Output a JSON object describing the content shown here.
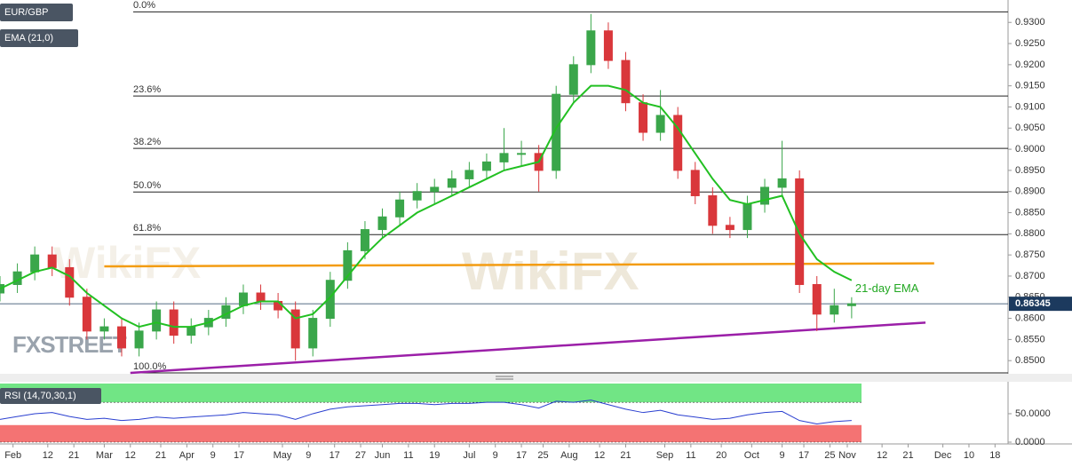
{
  "chart_data": [
    {
      "type": "candlestick",
      "title": "EUR/GBP",
      "x": [
        0,
        4,
        8,
        12,
        16,
        20,
        24,
        28,
        32,
        36,
        40,
        44,
        48,
        52,
        56,
        60,
        64,
        68,
        72,
        76,
        80,
        84,
        88,
        92,
        96,
        100,
        104,
        108,
        112,
        116,
        120,
        124,
        128,
        132,
        136,
        140,
        144,
        148,
        152,
        156,
        160,
        164,
        168,
        172,
        176,
        180,
        184,
        188,
        192,
        196
      ],
      "open": [
        0.866,
        0.868,
        0.871,
        0.875,
        0.872,
        0.865,
        0.857,
        0.858,
        0.853,
        0.857,
        0.862,
        0.856,
        0.858,
        0.86,
        0.863,
        0.866,
        0.864,
        0.862,
        0.853,
        0.86,
        0.869,
        0.876,
        0.881,
        0.884,
        0.888,
        0.89,
        0.891,
        0.893,
        0.895,
        0.897,
        0.899,
        0.899,
        0.895,
        0.913,
        0.92,
        0.928,
        0.921,
        0.911,
        0.904,
        0.908,
        0.895,
        0.889,
        0.882,
        0.881,
        0.887,
        0.891,
        0.893,
        0.868,
        0.861,
        0.863
      ],
      "high": [
        0.87,
        0.873,
        0.877,
        0.877,
        0.874,
        0.867,
        0.86,
        0.86,
        0.859,
        0.864,
        0.864,
        0.86,
        0.862,
        0.865,
        0.868,
        0.868,
        0.866,
        0.864,
        0.862,
        0.871,
        0.878,
        0.883,
        0.886,
        0.89,
        0.892,
        0.893,
        0.895,
        0.897,
        0.899,
        0.905,
        0.902,
        0.901,
        0.915,
        0.922,
        0.932,
        0.93,
        0.923,
        0.913,
        0.914,
        0.91,
        0.897,
        0.891,
        0.884,
        0.889,
        0.893,
        0.902,
        0.895,
        0.87,
        0.867,
        0.865
      ],
      "low": [
        0.864,
        0.866,
        0.869,
        0.87,
        0.863,
        0.855,
        0.855,
        0.851,
        0.851,
        0.855,
        0.854,
        0.854,
        0.856,
        0.858,
        0.861,
        0.862,
        0.86,
        0.85,
        0.851,
        0.858,
        0.867,
        0.874,
        0.879,
        0.882,
        0.886,
        0.887,
        0.889,
        0.891,
        0.893,
        0.895,
        0.896,
        0.89,
        0.893,
        0.911,
        0.918,
        0.919,
        0.909,
        0.902,
        0.902,
        0.893,
        0.887,
        0.88,
        0.879,
        0.879,
        0.885,
        0.889,
        0.866,
        0.857,
        0.859,
        0.86
      ],
      "close": [
        0.868,
        0.871,
        0.875,
        0.872,
        0.865,
        0.857,
        0.858,
        0.853,
        0.857,
        0.862,
        0.856,
        0.858,
        0.86,
        0.863,
        0.866,
        0.864,
        0.862,
        0.853,
        0.86,
        0.869,
        0.876,
        0.881,
        0.884,
        0.888,
        0.89,
        0.891,
        0.893,
        0.895,
        0.897,
        0.899,
        0.899,
        0.895,
        0.913,
        0.92,
        0.928,
        0.921,
        0.911,
        0.904,
        0.908,
        0.895,
        0.889,
        0.882,
        0.881,
        0.887,
        0.891,
        0.893,
        0.868,
        0.861,
        0.863,
        0.86345
      ],
      "up_color": "#3aa64a",
      "down_color": "#d9373b",
      "overlays": [
        {
          "name": "EMA (21,0)",
          "color": "#22c022",
          "values": [
            0.867,
            0.869,
            0.871,
            0.872,
            0.87,
            0.866,
            0.863,
            0.86,
            0.858,
            0.859,
            0.858,
            0.858,
            0.859,
            0.861,
            0.863,
            0.864,
            0.864,
            0.86,
            0.861,
            0.865,
            0.87,
            0.875,
            0.879,
            0.882,
            0.885,
            0.887,
            0.889,
            0.891,
            0.893,
            0.895,
            0.896,
            0.897,
            0.905,
            0.911,
            0.915,
            0.915,
            0.914,
            0.911,
            0.91,
            0.905,
            0.899,
            0.893,
            0.888,
            0.887,
            0.888,
            0.889,
            0.88,
            0.874,
            0.871,
            0.869
          ]
        }
      ],
      "annotation": "21-day EMA",
      "last_price": 0.86345,
      "xlim": [
        0,
        232
      ],
      "ylim": [
        0.8471,
        0.9353
      ],
      "yticks": [
        {
          "value": 0.85,
          "label": "0.8500"
        },
        {
          "value": 0.855,
          "label": "0.8550"
        },
        {
          "value": 0.86,
          "label": "0.8600"
        },
        {
          "value": 0.865,
          "label": "0.8650"
        },
        {
          "value": 0.87,
          "label": "0.8700"
        },
        {
          "value": 0.875,
          "label": "0.8750"
        },
        {
          "value": 0.88,
          "label": "0.8800"
        },
        {
          "value": 0.885,
          "label": "0.8850"
        },
        {
          "value": 0.89,
          "label": "0.8900"
        },
        {
          "value": 0.895,
          "label": "0.8950"
        },
        {
          "value": 0.9,
          "label": "0.9000"
        },
        {
          "value": 0.905,
          "label": "0.9050"
        },
        {
          "value": 0.91,
          "label": "0.9100"
        },
        {
          "value": 0.915,
          "label": "0.9150"
        },
        {
          "value": 0.92,
          "label": "0.9200"
        },
        {
          "value": 0.925,
          "label": "0.9250"
        },
        {
          "value": 0.93,
          "label": "0.9300"
        }
      ],
      "fib_levels": [
        {
          "value": 0.9325,
          "label": "0.0%"
        },
        {
          "value": 0.9126,
          "label": "23.6%"
        },
        {
          "value": 0.9002,
          "label": "38.2%"
        },
        {
          "value": 0.8899,
          "label": "50.0%"
        },
        {
          "value": 0.8798,
          "label": "61.8%"
        },
        {
          "value": 0.8471,
          "label": "100.0%"
        }
      ],
      "trendlines": [
        {
          "color": "#f39c12",
          "x": [
            24,
            215
          ],
          "y": [
            0.8723,
            0.873
          ]
        },
        {
          "color": "#9b1fa8",
          "x": [
            30,
            213
          ],
          "y": [
            0.8471,
            0.859
          ]
        }
      ],
      "watermarks": [
        "FXSTREET",
        "WikiFX"
      ]
    },
    {
      "type": "line",
      "x": [
        0,
        4,
        8,
        12,
        16,
        20,
        24,
        28,
        32,
        36,
        40,
        44,
        48,
        52,
        56,
        60,
        64,
        68,
        72,
        76,
        80,
        84,
        88,
        92,
        96,
        100,
        104,
        108,
        112,
        116,
        120,
        124,
        128,
        132,
        136,
        140,
        144,
        148,
        152,
        156,
        160,
        164,
        168,
        172,
        176,
        180,
        184,
        188,
        192,
        196
      ],
      "series": [
        {
          "name": "RSI (14,70,30,1)",
          "color": "#2a3fd0",
          "values": [
            40,
            45,
            50,
            52,
            45,
            40,
            42,
            38,
            40,
            44,
            42,
            44,
            46,
            48,
            52,
            50,
            48,
            40,
            50,
            58,
            62,
            64,
            66,
            68,
            68,
            66,
            68,
            68,
            70,
            70,
            66,
            60,
            72,
            70,
            74,
            66,
            58,
            52,
            56,
            48,
            44,
            40,
            42,
            48,
            52,
            54,
            38,
            32,
            36,
            38
          ]
        }
      ],
      "bands": [
        {
          "from": 70,
          "to": 103,
          "color": "#58e070"
        },
        {
          "from": 0,
          "to": 30,
          "color": "#f25a5a"
        }
      ],
      "ylim": [
        0,
        103
      ],
      "yticks": [
        {
          "value": 50,
          "label": "50.0000"
        },
        {
          "value": 0,
          "label": "0.0000"
        }
      ],
      "xticks": [
        {
          "value": 3,
          "label": "Feb"
        },
        {
          "value": 11,
          "label": "12"
        },
        {
          "value": 17,
          "label": "21"
        },
        {
          "value": 24,
          "label": "Mar"
        },
        {
          "value": 30,
          "label": "12"
        },
        {
          "value": 37,
          "label": "21"
        },
        {
          "value": 43,
          "label": "Apr"
        },
        {
          "value": 49,
          "label": "9"
        },
        {
          "value": 55,
          "label": "17"
        },
        {
          "value": 65,
          "label": "May"
        },
        {
          "value": 71,
          "label": "9"
        },
        {
          "value": 77,
          "label": "17"
        },
        {
          "value": 83,
          "label": "27"
        },
        {
          "value": 88,
          "label": "Jun"
        },
        {
          "value": 94,
          "label": "11"
        },
        {
          "value": 100,
          "label": "19"
        },
        {
          "value": 108,
          "label": "Jul"
        },
        {
          "value": 114,
          "label": "9"
        },
        {
          "value": 120,
          "label": "17"
        },
        {
          "value": 125,
          "label": "25"
        },
        {
          "value": 131,
          "label": "Aug"
        },
        {
          "value": 138,
          "label": "12"
        },
        {
          "value": 144,
          "label": "21"
        },
        {
          "value": 153,
          "label": "Sep"
        },
        {
          "value": 159,
          "label": "11"
        },
        {
          "value": 166,
          "label": "20"
        },
        {
          "value": 173,
          "label": "Oct"
        },
        {
          "value": 180,
          "label": "9"
        },
        {
          "value": 185,
          "label": "17"
        },
        {
          "value": 191,
          "label": "25"
        },
        {
          "value": 195,
          "label": "Nov"
        },
        {
          "value": 203,
          "label": "12"
        },
        {
          "value": 209,
          "label": "21"
        },
        {
          "value": 217,
          "label": "Dec"
        },
        {
          "value": 223,
          "label": "10"
        },
        {
          "value": 229,
          "label": "18"
        }
      ]
    }
  ]
}
